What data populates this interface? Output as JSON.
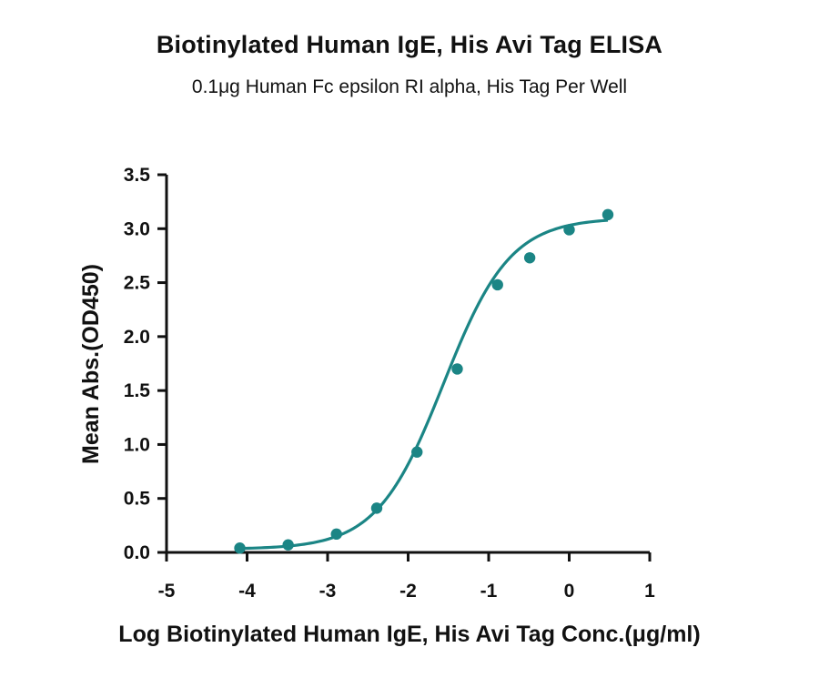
{
  "chart_data": {
    "type": "scatter",
    "title": "Biotinylated Human IgE, His Avi Tag ELISA",
    "subtitle": "0.1μg Human Fc epsilon RI alpha, His Tag Per Well",
    "xlabel": "Log Biotinylated Human IgE, His Avi Tag Conc.(μg/ml)",
    "ylabel": "Mean Abs.(OD450)",
    "xlim": [
      -5,
      1
    ],
    "ylim": [
      0,
      3.5
    ],
    "xticks": [
      "-5",
      "-4",
      "-3",
      "-2",
      "-1",
      "0",
      "1"
    ],
    "yticks": [
      "0.0",
      "0.5",
      "1.0",
      "1.5",
      "2.0",
      "2.5",
      "3.0",
      "3.5"
    ],
    "grid": false,
    "series": [
      {
        "x": [
          -4.09,
          -3.49,
          -2.89,
          -2.39,
          -1.89,
          -1.39,
          -0.89,
          -0.49,
          0.0,
          0.48
        ],
        "y": [
          0.04,
          0.07,
          0.17,
          0.41,
          0.93,
          1.7,
          2.48,
          2.73,
          2.99,
          3.13
        ],
        "fit": "sigmoidal",
        "color": "#1b8585"
      }
    ]
  }
}
